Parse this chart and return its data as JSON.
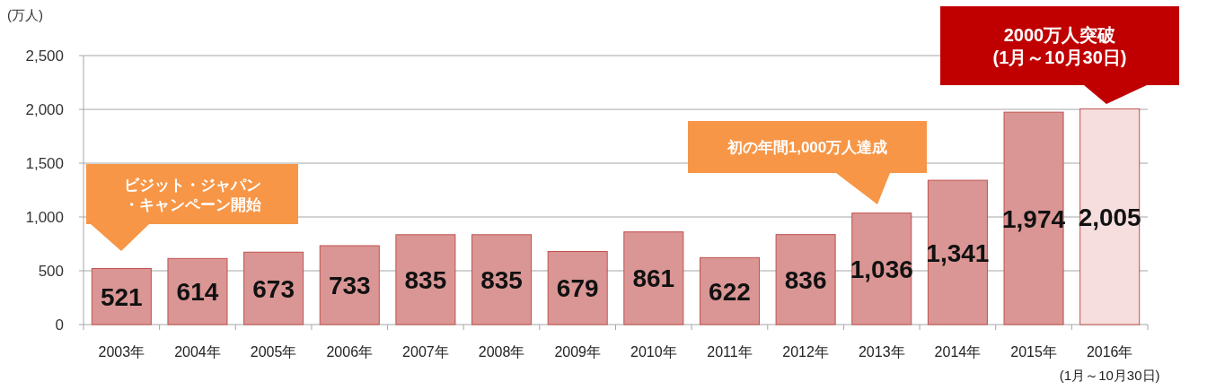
{
  "chart_data": {
    "type": "bar",
    "ylabel": "(万人)",
    "categories": [
      "2003年",
      "2004年",
      "2005年",
      "2006年",
      "2007年",
      "2008年",
      "2009年",
      "2010年",
      "2011年",
      "2012年",
      "2013年",
      "2014年",
      "2015年",
      "2016年\n(1月～10月30日)"
    ],
    "values": [
      521,
      614,
      673,
      733,
      835,
      835,
      679,
      861,
      622,
      836,
      1036,
      1341,
      1974,
      2005
    ],
    "value_labels": [
      "521",
      "614",
      "673",
      "733",
      "835",
      "835",
      "679",
      "861",
      "622",
      "836",
      "1,036",
      "1,341",
      "1,974",
      "2,005"
    ],
    "colors": [
      "#d99694",
      "#d99694",
      "#d99694",
      "#d99694",
      "#d99694",
      "#d99694",
      "#d99694",
      "#d99694",
      "#d99694",
      "#d99694",
      "#d99694",
      "#d99694",
      "#d99694",
      "#f6dede"
    ],
    "ylim": [
      0,
      2500
    ],
    "yticks": [
      {
        "value": 0,
        "label": "0"
      },
      {
        "value": 500,
        "label": "500"
      },
      {
        "value": 1000,
        "label": "1,000"
      },
      {
        "value": 1500,
        "label": "1,500"
      },
      {
        "value": 2000,
        "label": "2,000"
      },
      {
        "value": 2500,
        "label": "2,500"
      }
    ],
    "grid": "y",
    "annotations": [
      "ビジット・ジャパン・キャンペーン開始",
      "初の年間1,000万人達成",
      "2000万人突破(1月～10月30日)"
    ]
  }
}
